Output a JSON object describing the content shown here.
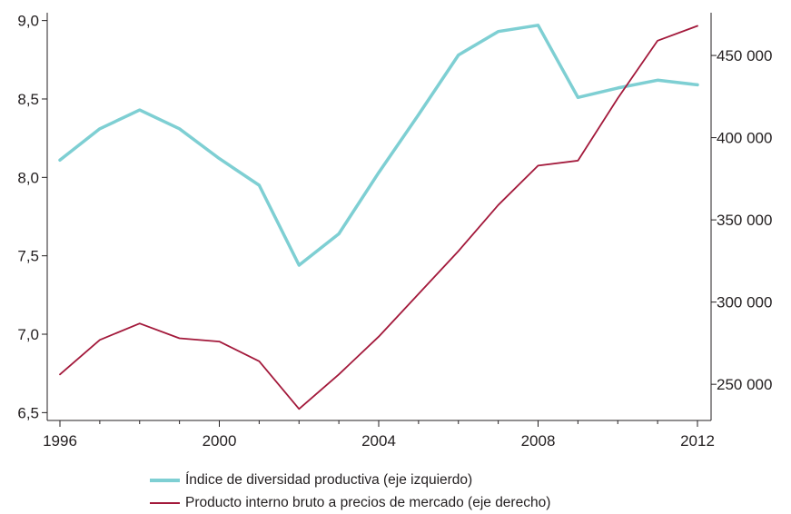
{
  "chart_data": {
    "type": "line",
    "x": [
      1996,
      1997,
      1998,
      1999,
      2000,
      2001,
      2002,
      2003,
      2004,
      2005,
      2006,
      2007,
      2008,
      2009,
      2010,
      2011,
      2012
    ],
    "x_ticks": [
      "1996",
      "2000",
      "2004",
      "2008",
      "2012"
    ],
    "xlim": [
      1996,
      2012
    ],
    "y_left_ticks": [
      "9,0",
      "8,5",
      "8,0",
      "7,5",
      "7,0",
      "6,5"
    ],
    "y_left_lim": [
      6.45,
      9.05
    ],
    "y_right_ticks": [
      "450 000",
      "400 000",
      "350 000",
      "300 000",
      "250 000"
    ],
    "y_right_lim": [
      228000,
      476000
    ],
    "grid": false,
    "legend_position": "bottom",
    "series": [
      {
        "name": "Índice de diversidad productiva (eje izquierdo)",
        "axis": "left",
        "color": "#7ecfd3",
        "values": [
          8.11,
          8.31,
          8.43,
          8.31,
          8.12,
          7.95,
          7.44,
          7.64,
          8.03,
          8.4,
          8.78,
          8.93,
          8.97,
          8.51,
          8.57,
          8.62,
          8.59
        ]
      },
      {
        "name": "Producto interno bruto a precios de mercado (eje derecho)",
        "axis": "right",
        "color": "#a3193b",
        "values": [
          256000,
          277000,
          287000,
          278000,
          276000,
          264000,
          235000,
          256000,
          279000,
          305000,
          331000,
          359000,
          383000,
          386000,
          424000,
          459000,
          468000
        ]
      }
    ]
  }
}
